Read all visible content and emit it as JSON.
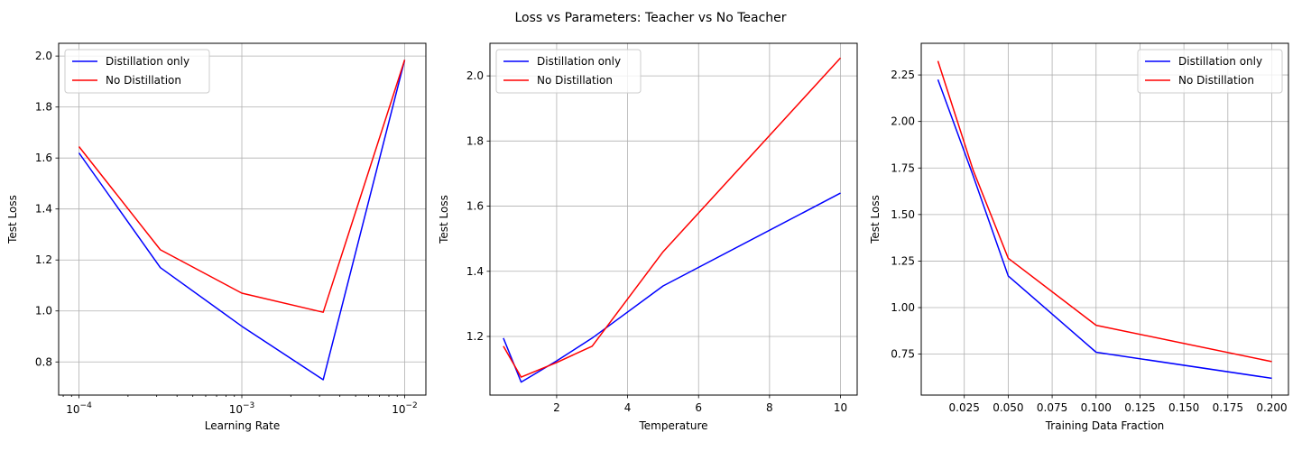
{
  "figure": {
    "title": "Loss vs Parameters: Teacher vs No Teacher"
  },
  "chart_data": [
    {
      "type": "line",
      "xlabel": "Learning Rate",
      "ylabel": "Test Loss",
      "xscale": "log",
      "xlim": [
        7.5e-05,
        0.0135
      ],
      "ylim": [
        0.67,
        2.05
      ],
      "xticks": [
        {
          "value": 0.0001,
          "base": "10",
          "exp": "−4"
        },
        {
          "value": 0.001,
          "base": "10",
          "exp": "−3"
        },
        {
          "value": 0.01,
          "base": "10",
          "exp": "−2"
        }
      ],
      "yticks": [
        0.8,
        1.0,
        1.2,
        1.4,
        1.6,
        1.8,
        2.0
      ],
      "ytick_labels": [
        "0.8",
        "1.0",
        "1.2",
        "1.4",
        "1.6",
        "1.8",
        "2.0"
      ],
      "grid": true,
      "legend": "upper-left",
      "x": [
        0.0001,
        0.000316,
        0.001,
        0.00316,
        0.01
      ],
      "series": [
        {
          "name": "Distillation only",
          "color": "#0000ff",
          "values": [
            1.62,
            1.17,
            0.94,
            0.73,
            1.985
          ]
        },
        {
          "name": "No Distillation",
          "color": "#ff0000",
          "values": [
            1.645,
            1.24,
            1.07,
            0.995,
            1.985
          ]
        }
      ]
    },
    {
      "type": "line",
      "xlabel": "Temperature",
      "ylabel": "Test Loss",
      "xscale": "linear",
      "xlim": [
        0.12,
        10.47
      ],
      "ylim": [
        1.02,
        2.1
      ],
      "xticks": [
        2,
        4,
        6,
        8,
        10
      ],
      "xtick_labels": [
        "2",
        "4",
        "6",
        "8",
        "10"
      ],
      "yticks": [
        1.2,
        1.4,
        1.6,
        1.8,
        2.0
      ],
      "ytick_labels": [
        "1.2",
        "1.4",
        "1.6",
        "1.8",
        "2.0"
      ],
      "grid": true,
      "legend": "upper-left",
      "x": [
        0.5,
        1,
        2,
        3,
        5,
        10
      ],
      "series": [
        {
          "name": "Distillation only",
          "color": "#0000ff",
          "values": [
            1.195,
            1.06,
            1.125,
            1.195,
            1.355,
            1.64
          ]
        },
        {
          "name": "No Distillation",
          "color": "#ff0000",
          "values": [
            1.17,
            1.075,
            1.12,
            1.17,
            1.46,
            2.055
          ]
        }
      ]
    },
    {
      "type": "line",
      "xlabel": "Training Data Fraction",
      "ylabel": "Test Loss",
      "xscale": "linear",
      "xlim": [
        0.0005,
        0.2095
      ],
      "ylim": [
        0.53,
        2.42
      ],
      "xticks": [
        0.025,
        0.05,
        0.075,
        0.1,
        0.125,
        0.15,
        0.175,
        0.2
      ],
      "xtick_labels": [
        "0.025",
        "0.050",
        "0.075",
        "0.100",
        "0.125",
        "0.150",
        "0.175",
        "0.200"
      ],
      "yticks": [
        0.75,
        1.0,
        1.25,
        1.5,
        1.75,
        2.0,
        2.25
      ],
      "ytick_labels": [
        "0.75",
        "1.00",
        "1.25",
        "1.50",
        "1.75",
        "2.00",
        "2.25"
      ],
      "grid": true,
      "legend": "upper-right",
      "x": [
        0.01,
        0.03,
        0.05,
        0.1,
        0.2
      ],
      "series": [
        {
          "name": "Distillation only",
          "color": "#0000ff",
          "values": [
            2.225,
            1.71,
            1.17,
            0.76,
            0.62
          ]
        },
        {
          "name": "No Distillation",
          "color": "#ff0000",
          "values": [
            2.325,
            1.74,
            1.265,
            0.905,
            0.71
          ]
        }
      ]
    }
  ]
}
